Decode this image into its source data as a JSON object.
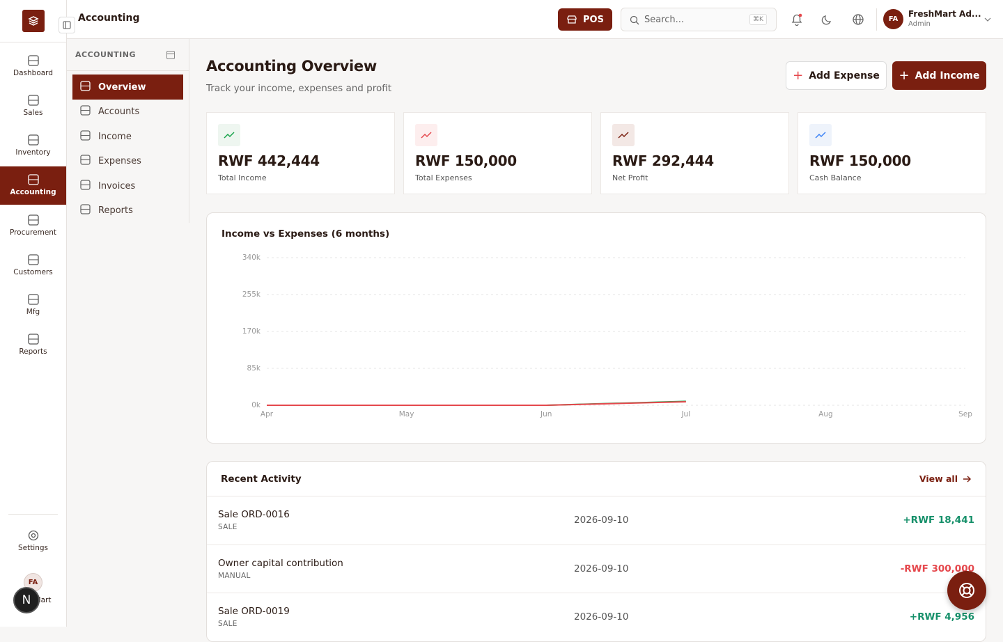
{
  "header": {
    "section": "Accounting",
    "pos": "POS",
    "search_placeholder": "Search...",
    "shortcut": "⌘K",
    "user_initials": "FA",
    "user_name": "FreshMart Ad...",
    "user_role": "Admin"
  },
  "rail": {
    "items": [
      "Dashboard",
      "Sales",
      "Inventory",
      "Accounting",
      "Procurement",
      "Customers",
      "Mfg",
      "Reports"
    ],
    "active": 3,
    "settings": "Settings",
    "org_initials": "FA",
    "org_name": "FreshMart",
    "bubble": "N"
  },
  "subnav": {
    "heading": "ACCOUNTING",
    "items": [
      "Overview",
      "Accounts",
      "Income",
      "Expenses",
      "Invoices",
      "Reports"
    ],
    "active": 0
  },
  "page": {
    "title": "Accounting Overview",
    "subtitle": "Track your income, expenses and profit",
    "add_expense": "Add Expense",
    "add_income": "Add Income"
  },
  "stats": [
    {
      "value": "RWF 442,444",
      "label": "Total Income"
    },
    {
      "value": "RWF 150,000",
      "label": "Total Expenses"
    },
    {
      "value": "RWF 292,444",
      "label": "Net Profit"
    },
    {
      "value": "RWF 150,000",
      "label": "Cash Balance"
    }
  ],
  "chart_data": {
    "type": "line",
    "title": "Income vs Expenses (6 months)",
    "categories": [
      "Apr",
      "May",
      "Jun",
      "Jul",
      "Aug",
      "Sep"
    ],
    "series": [
      {
        "name": "Income",
        "color": "#16a34a",
        "values": [
          0,
          0,
          0,
          9000,
          null,
          null
        ]
      },
      {
        "name": "Expenses",
        "color": "#e5484d",
        "values": [
          0,
          0,
          0,
          8000,
          null,
          null
        ]
      }
    ],
    "ylim": [
      0,
      340000
    ],
    "yticks": [
      {
        "value": 0,
        "label": "0k"
      },
      {
        "value": 85000,
        "label": "85k"
      },
      {
        "value": 170000,
        "label": "170k"
      },
      {
        "value": 255000,
        "label": "255k"
      },
      {
        "value": 340000,
        "label": "340k"
      }
    ],
    "grid": true
  },
  "activity": {
    "title": "Recent Activity",
    "view_all": "View all",
    "rows": [
      {
        "name": "Sale ORD-0016",
        "type": "SALE",
        "date": "2026-09-10",
        "amount": "+RWF 18,441",
        "direction": "in"
      },
      {
        "name": "Owner capital contribution",
        "type": "MANUAL",
        "date": "2026-09-10",
        "amount": "-RWF 300,000",
        "direction": "out"
      },
      {
        "name": "Sale ORD-0019",
        "type": "SALE",
        "date": "2026-09-10",
        "amount": "+RWF 4,956",
        "direction": "in"
      }
    ]
  }
}
